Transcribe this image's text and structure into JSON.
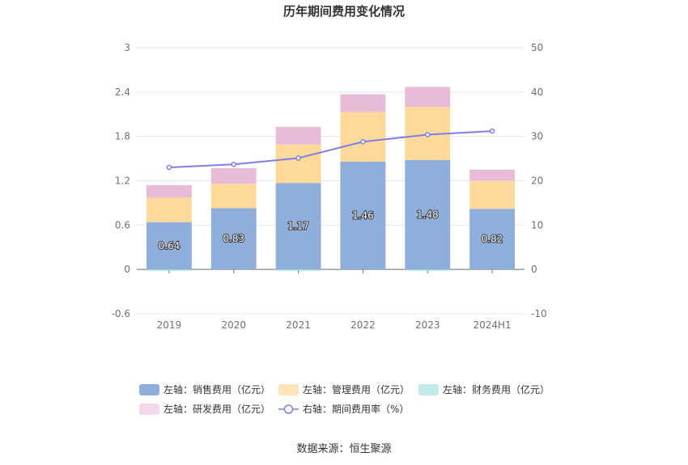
{
  "chart_data": {
    "type": "bar",
    "title": "历年期间费用变化情况",
    "categories": [
      "2019",
      "2020",
      "2021",
      "2022",
      "2023",
      "2024H1"
    ],
    "y_left": {
      "min": -0.6,
      "max": 3,
      "ticks": [
        "3",
        "2.4",
        "1.8",
        "1.2",
        "0.6",
        "0",
        "-0.6"
      ]
    },
    "y_right": {
      "min": -10,
      "max": 50,
      "ticks": [
        "50",
        "40",
        "30",
        "20",
        "10",
        "0",
        "-10"
      ]
    },
    "series": [
      {
        "name": "左轴：销售费用（亿元）",
        "type": "bar",
        "axis": "left",
        "color": "#8eaedc",
        "values": [
          0.64,
          0.83,
          1.17,
          1.46,
          1.48,
          0.82
        ],
        "labels": [
          "0.64",
          "0.83",
          "1.17",
          "1.46",
          "1.48",
          "0.82"
        ]
      },
      {
        "name": "左轴：管理费用（亿元）",
        "type": "bar",
        "axis": "left",
        "color": "#ffd999",
        "values": [
          0.33,
          0.33,
          0.52,
          0.67,
          0.72,
          0.38
        ]
      },
      {
        "name": "左轴：财务费用（亿元）",
        "type": "bar",
        "axis": "left",
        "color": "#a8e2e2",
        "values": [
          -0.01,
          0.0,
          -0.01,
          0.0,
          -0.01,
          0.0
        ]
      },
      {
        "name": "左轴：研发费用（亿元）",
        "type": "bar",
        "axis": "left",
        "color": "#e8bcd9",
        "values": [
          0.17,
          0.21,
          0.24,
          0.24,
          0.27,
          0.15
        ]
      },
      {
        "name": "右轴：期间费用率（%）",
        "type": "line",
        "axis": "right",
        "color": "#7b7fe6",
        "values": [
          23.0,
          23.7,
          25.1,
          28.8,
          30.4,
          31.2
        ]
      }
    ],
    "legend_position": "bottom",
    "grid": true
  },
  "source": "数据来源：恒生聚源"
}
